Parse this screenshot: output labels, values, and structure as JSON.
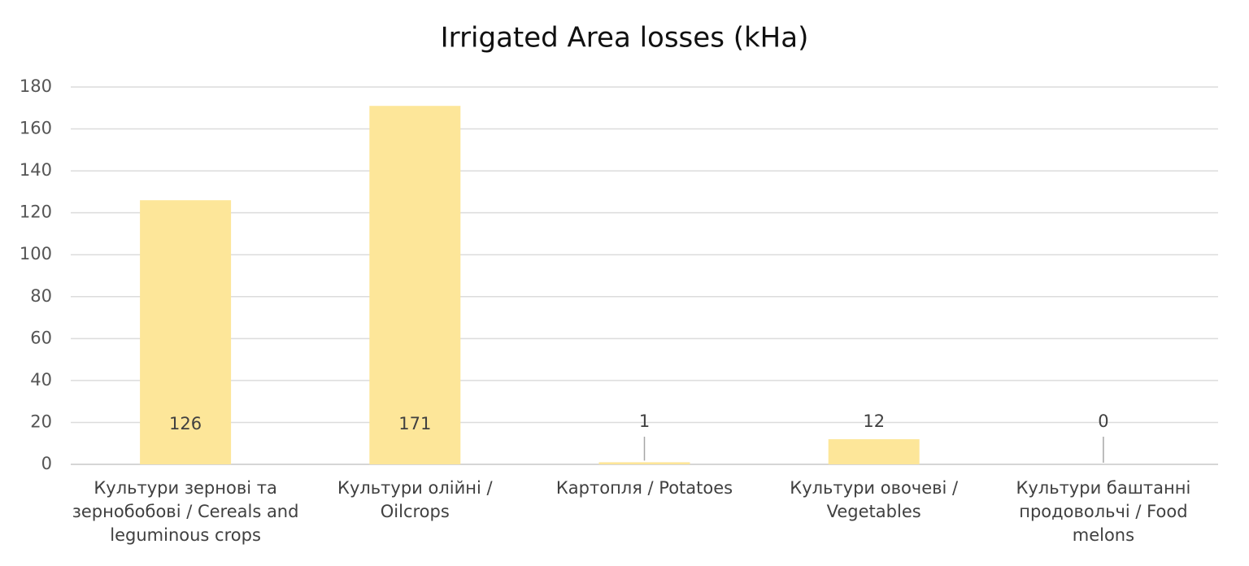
{
  "chart_data": {
    "type": "bar",
    "title": "Irrigated Area losses (kHa)",
    "categories": [
      "Культури зернові та зернобобові / Cereals and leguminous crops",
      "Культури олійні / Oilcrops",
      "Картопля / Potatoes",
      "Культури овочеві / Vegetables",
      "Культури баштанні продовольчі / Food melons"
    ],
    "values": [
      126,
      171,
      1,
      12,
      0
    ],
    "color": "#fde699",
    "ylim": [
      0,
      180
    ],
    "yticks": [
      0,
      20,
      40,
      60,
      80,
      100,
      120,
      140,
      160,
      180
    ],
    "grid": true
  }
}
